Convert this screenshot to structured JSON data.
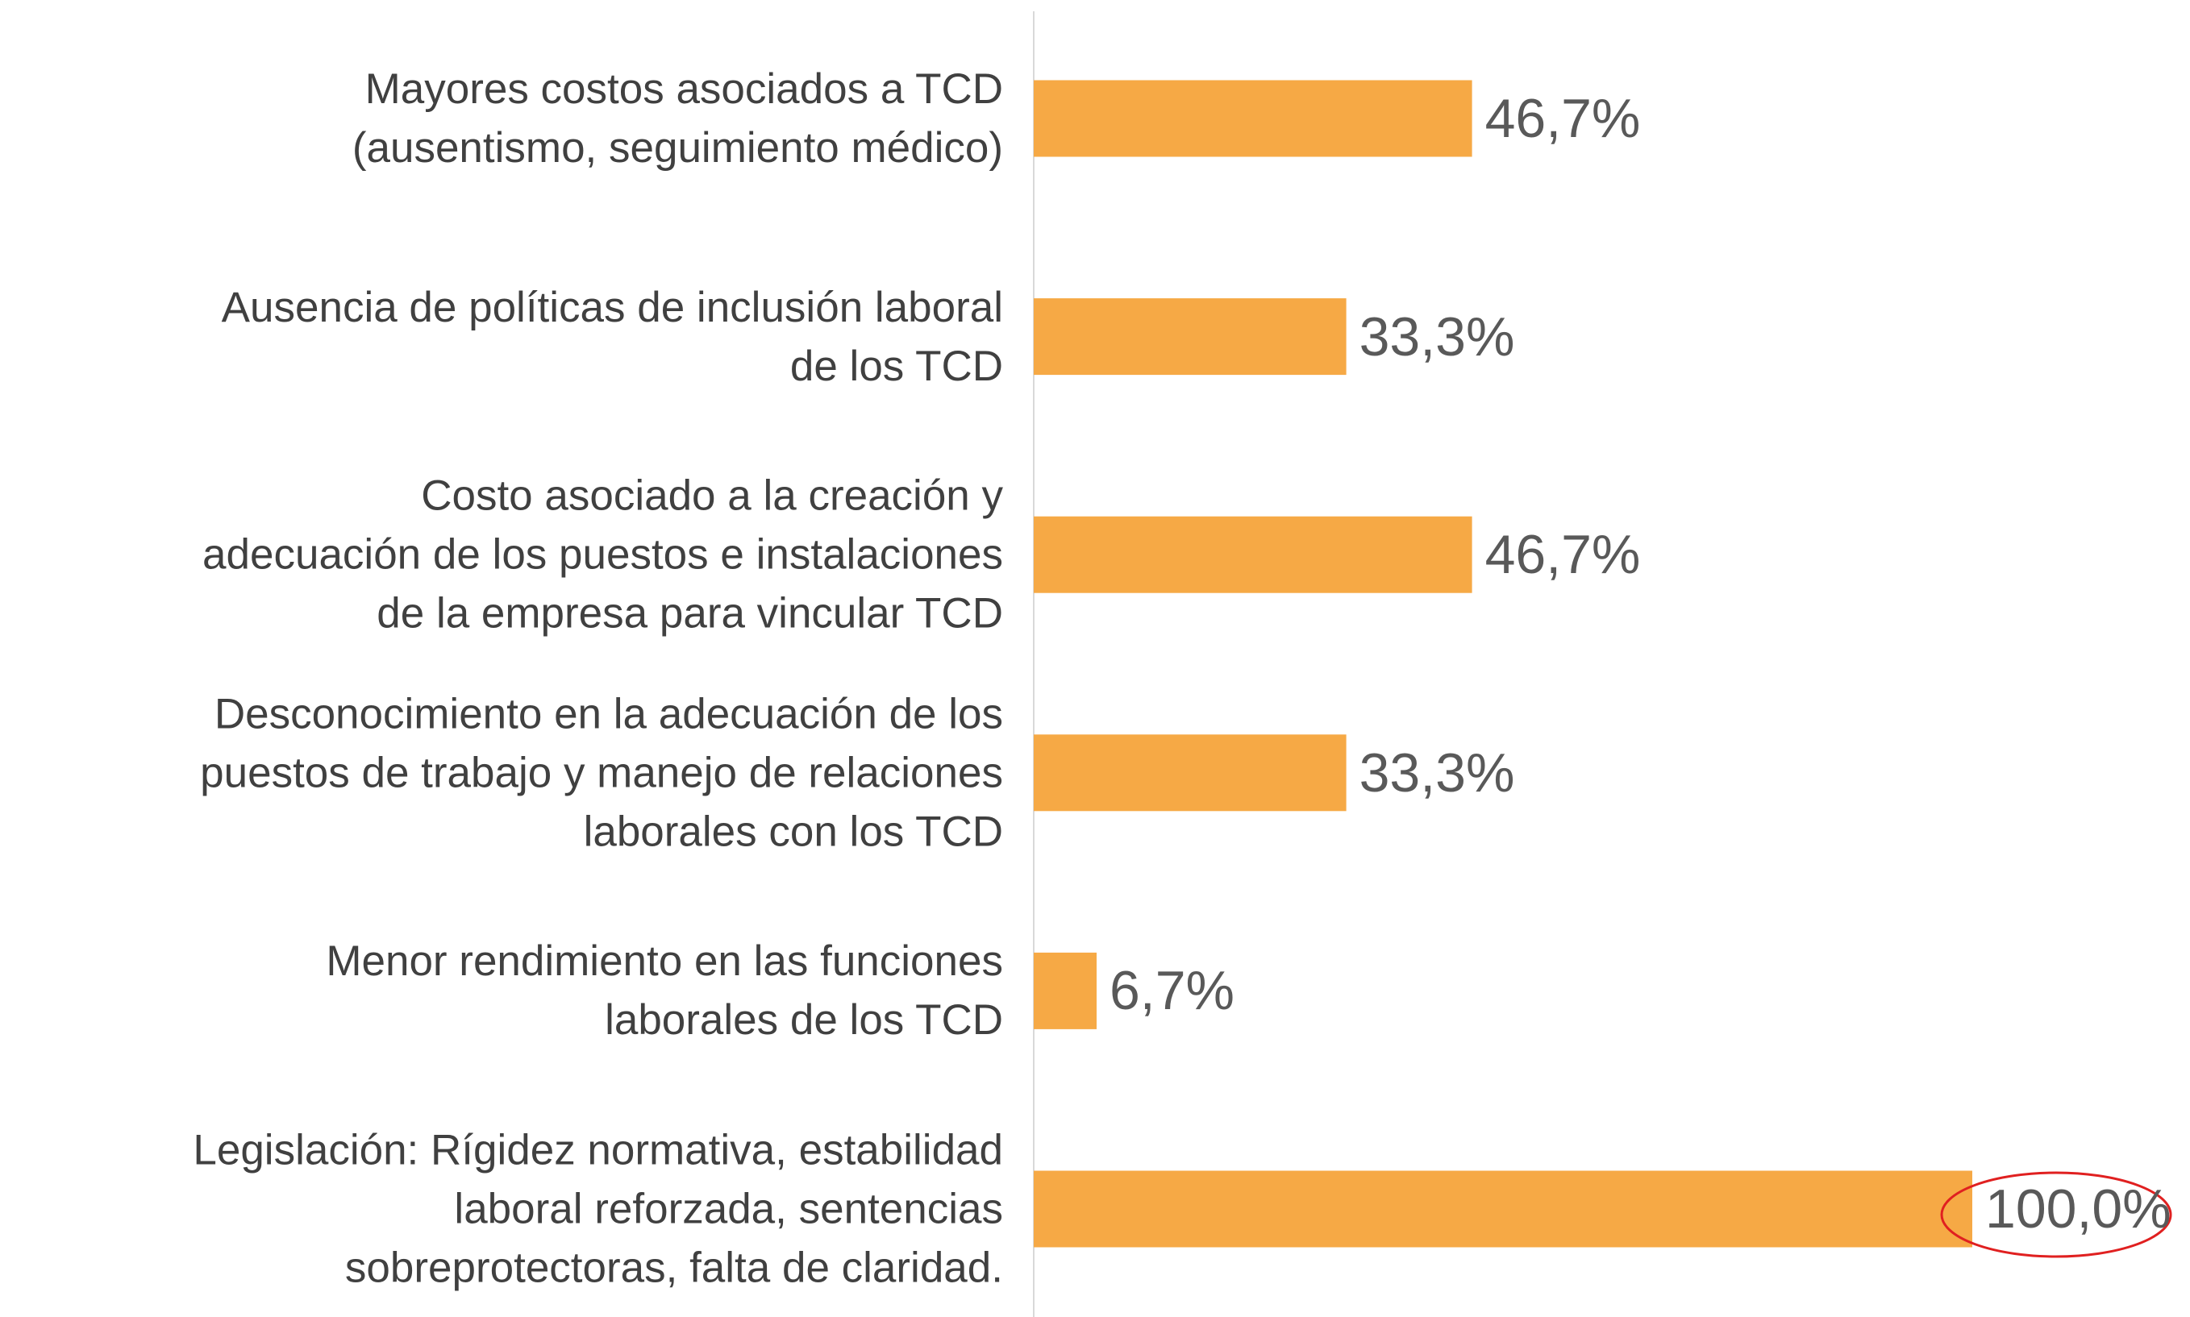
{
  "chart_data": {
    "type": "bar",
    "orientation": "horizontal",
    "categories": [
      "Mayores costos asociados a TCD\n(ausentismo, seguimiento médico)",
      "Ausencia de políticas de inclusión laboral\nde los TCD",
      "Costo asociado a la creación y\nadecuación de los puestos e instalaciones\nde la empresa para vincular TCD",
      "Desconocimiento en la adecuación de los\npuestos de trabajo y manejo de relaciones\nlaborales con los TCD",
      "Menor rendimiento en las funciones\nlaborales de los TCD",
      "Legislación: Rígidez normativa, estabilidad\nlaboral reforzada, sentencias\nsobreprotectoras, falta de claridad."
    ],
    "values": [
      46.7,
      33.3,
      46.7,
      33.3,
      6.7,
      100.0
    ],
    "value_labels": [
      "46,7%",
      "33,3%",
      "46,7%",
      "33,3%",
      "6,7%",
      "100,0%"
    ],
    "color": "#f6a945",
    "xlim": [
      0,
      100
    ]
  }
}
